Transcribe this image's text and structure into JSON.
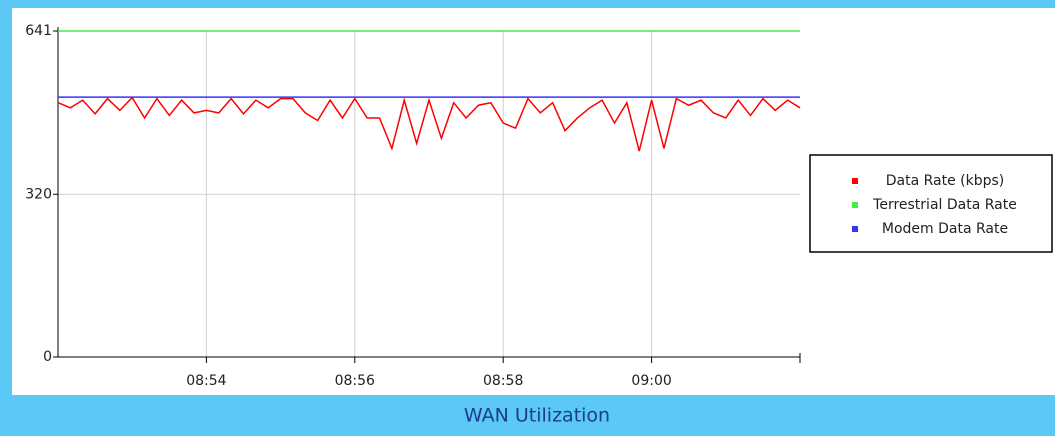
{
  "chart_data": {
    "type": "line",
    "title": "WAN Utilization",
    "x": [
      "08:52:00",
      "08:52:10",
      "08:52:20",
      "08:52:30",
      "08:52:40",
      "08:52:50",
      "08:53:00",
      "08:53:10",
      "08:53:20",
      "08:53:30",
      "08:53:40",
      "08:53:50",
      "08:54:00",
      "08:54:10",
      "08:54:20",
      "08:54:30",
      "08:54:40",
      "08:54:50",
      "08:55:00",
      "08:55:10",
      "08:55:20",
      "08:55:30",
      "08:55:40",
      "08:55:50",
      "08:56:00",
      "08:56:10",
      "08:56:20",
      "08:56:30",
      "08:56:40",
      "08:56:50",
      "08:57:00",
      "08:57:10",
      "08:57:20",
      "08:57:30",
      "08:57:40",
      "08:57:50",
      "08:58:00",
      "08:58:10",
      "08:58:20",
      "08:58:30",
      "08:58:40",
      "08:58:50",
      "08:59:00",
      "08:59:10",
      "08:59:20",
      "08:59:30",
      "08:59:40",
      "08:59:50",
      "09:00:00",
      "09:00:10",
      "09:00:20",
      "09:00:30",
      "09:00:40",
      "09:00:50",
      "09:01:00",
      "09:01:10",
      "09:01:20",
      "09:01:30",
      "09:01:40",
      "09:01:50",
      "09:02:00"
    ],
    "series": [
      {
        "name": "Data Rate (kbps)",
        "color": "#ff0000",
        "values": [
          500,
          490,
          505,
          478,
          508,
          485,
          510,
          470,
          508,
          475,
          505,
          480,
          485,
          480,
          508,
          478,
          505,
          490,
          508,
          508,
          480,
          465,
          505,
          470,
          508,
          470,
          470,
          410,
          505,
          420,
          505,
          430,
          500,
          470,
          495,
          500,
          460,
          450,
          508,
          480,
          500,
          445,
          470,
          490,
          505,
          460,
          500,
          405,
          505,
          410,
          508,
          495,
          505,
          480,
          470,
          505,
          475,
          508,
          485,
          505,
          490
        ]
      },
      {
        "name": "Terrestrial Data Rate",
        "color": "#44ee44",
        "values": [
          641,
          641,
          641,
          641,
          641,
          641,
          641,
          641,
          641,
          641,
          641,
          641,
          641,
          641,
          641,
          641,
          641,
          641,
          641,
          641,
          641,
          641,
          641,
          641,
          641,
          641,
          641,
          641,
          641,
          641,
          641,
          641,
          641,
          641,
          641,
          641,
          641,
          641,
          641,
          641,
          641,
          641,
          641,
          641,
          641,
          641,
          641,
          641,
          641,
          641,
          641,
          641,
          641,
          641,
          641,
          641,
          641,
          641,
          641,
          641,
          641
        ]
      },
      {
        "name": "Modem Data Rate",
        "color": "#3333ff",
        "values": [
          511,
          511,
          511,
          511,
          511,
          511,
          511,
          511,
          511,
          511,
          511,
          511,
          511,
          511,
          511,
          511,
          511,
          511,
          511,
          511,
          511,
          511,
          511,
          511,
          511,
          511,
          511,
          511,
          511,
          511,
          511,
          511,
          511,
          511,
          511,
          511,
          511,
          511,
          511,
          511,
          511,
          511,
          511,
          511,
          511,
          511,
          511,
          511,
          511,
          511,
          511,
          511,
          511,
          511,
          511,
          511,
          511,
          511,
          511,
          511,
          511
        ]
      }
    ],
    "xlim": [
      "08:52",
      "09:02"
    ],
    "xticks": [
      "08:54",
      "08:56",
      "08:58",
      "09:00"
    ],
    "ylim": [
      0,
      641
    ],
    "yticks": [
      0,
      320,
      641
    ],
    "grid": true,
    "legend": "right"
  }
}
